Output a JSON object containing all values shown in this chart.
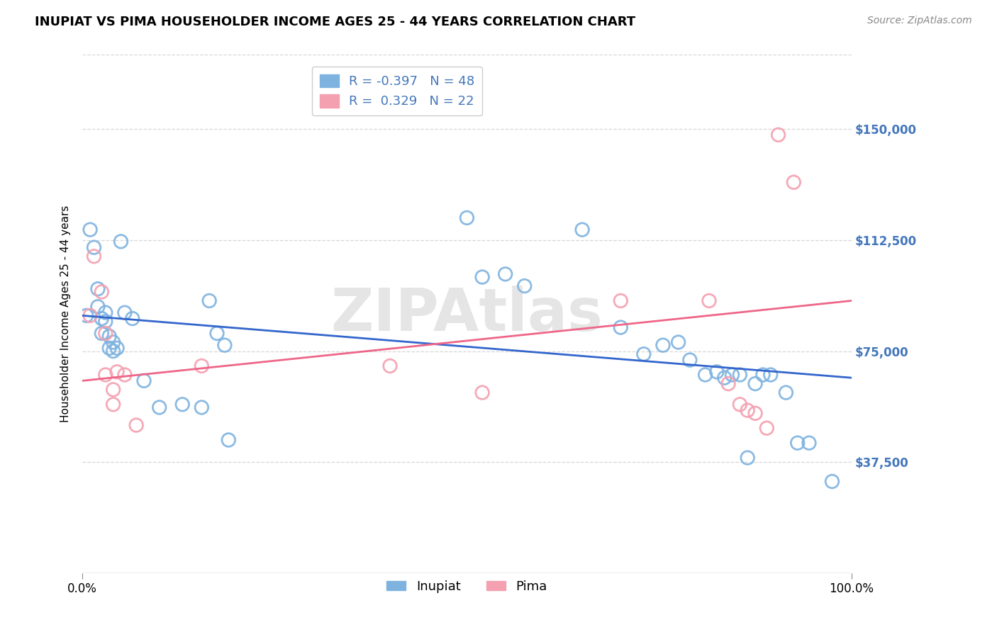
{
  "title": "INUPIAT VS PIMA HOUSEHOLDER INCOME AGES 25 - 44 YEARS CORRELATION CHART",
  "source": "Source: ZipAtlas.com",
  "ylabel": "Householder Income Ages 25 - 44 years",
  "xlim": [
    0.0,
    1.0
  ],
  "ylim": [
    0,
    175000
  ],
  "ytick_values": [
    37500,
    75000,
    112500,
    150000
  ],
  "ytick_labels": [
    "$37,500",
    "$75,000",
    "$112,500",
    "$150,000"
  ],
  "watermark": "ZIPAtlas",
  "inupiat_color": "#7EB3E0",
  "pima_color": "#F4A0B0",
  "inupiat_line_color": "#3366CC",
  "pima_line_color": "#EE6688",
  "legend_r_inupiat": "-0.397",
  "legend_n_inupiat": "48",
  "legend_r_pima": "0.329",
  "legend_n_pima": "22",
  "inupiat_x": [
    0.005,
    0.01,
    0.015,
    0.02,
    0.02,
    0.025,
    0.025,
    0.03,
    0.03,
    0.035,
    0.035,
    0.04,
    0.04,
    0.045,
    0.05,
    0.055,
    0.065,
    0.08,
    0.1,
    0.13,
    0.155,
    0.165,
    0.175,
    0.185,
    0.19,
    0.5,
    0.52,
    0.55,
    0.575,
    0.65,
    0.7,
    0.73,
    0.755,
    0.775,
    0.79,
    0.81,
    0.825,
    0.835,
    0.845,
    0.855,
    0.865,
    0.875,
    0.885,
    0.895,
    0.915,
    0.93,
    0.945,
    0.975
  ],
  "inupiat_y": [
    87000,
    116000,
    110000,
    96000,
    90000,
    86000,
    81000,
    88000,
    85000,
    80000,
    76000,
    78000,
    75000,
    76000,
    112000,
    88000,
    86000,
    65000,
    56000,
    57000,
    56000,
    92000,
    81000,
    77000,
    45000,
    120000,
    100000,
    101000,
    97000,
    116000,
    83000,
    74000,
    77000,
    78000,
    72000,
    67000,
    68000,
    66000,
    67000,
    67000,
    39000,
    64000,
    67000,
    67000,
    61000,
    44000,
    44000,
    31000
  ],
  "pima_x": [
    0.01,
    0.015,
    0.025,
    0.03,
    0.03,
    0.04,
    0.04,
    0.045,
    0.055,
    0.07,
    0.155,
    0.4,
    0.52,
    0.7,
    0.815,
    0.84,
    0.855,
    0.865,
    0.875,
    0.89,
    0.905,
    0.925
  ],
  "pima_y": [
    87000,
    107000,
    95000,
    81000,
    67000,
    62000,
    57000,
    68000,
    67000,
    50000,
    70000,
    70000,
    61000,
    92000,
    92000,
    64000,
    57000,
    55000,
    54000,
    49000,
    148000,
    132000
  ],
  "inupiat_line_x0": 0.0,
  "inupiat_line_y0": 87000,
  "inupiat_line_x1": 1.0,
  "inupiat_line_y1": 66000,
  "pima_line_x0": 0.0,
  "pima_line_y0": 65000,
  "pima_line_x1": 1.0,
  "pima_line_y1": 92000
}
